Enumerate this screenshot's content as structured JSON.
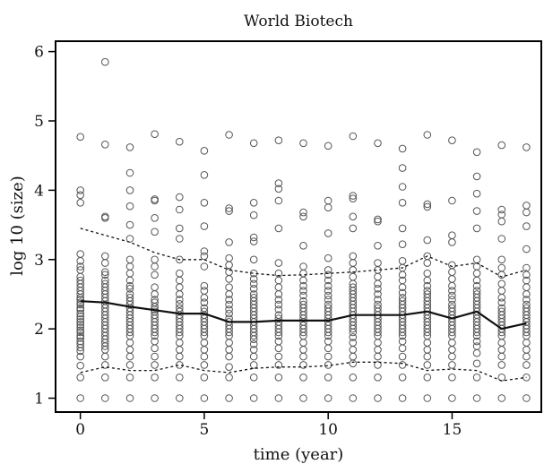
{
  "chart_data": {
    "type": "scatter",
    "title": "World Biotech",
    "xlabel": "time (year)",
    "ylabel": "log 10 (size)",
    "xlim": [
      -1,
      18.6
    ],
    "ylim": [
      0.8,
      6.15
    ],
    "xticks": [
      0,
      5,
      10,
      15
    ],
    "yticks": [
      1,
      2,
      3,
      4,
      5,
      6
    ],
    "grid": false,
    "legend": "none",
    "point_marker": "open-circle",
    "colors": {
      "points": "#555555",
      "lines": "#111111",
      "background": "#ffffff"
    },
    "points_by_year": [
      {
        "x": 0,
        "y": [
          4.77,
          4.0,
          3.93,
          3.82,
          3.08,
          2.98,
          2.9,
          2.85,
          2.75,
          2.7,
          2.65,
          2.6,
          2.55,
          2.5,
          2.45,
          2.42,
          2.38,
          2.35,
          2.3,
          2.27,
          2.22,
          2.18,
          2.14,
          2.1,
          2.06,
          2.02,
          1.98,
          1.95,
          1.9,
          1.87,
          1.82,
          1.78,
          1.73,
          1.68,
          1.6,
          1.47,
          1.3,
          1.0
        ]
      },
      {
        "x": 1,
        "y": [
          5.85,
          4.66,
          3.62,
          3.6,
          3.05,
          2.95,
          2.82,
          2.78,
          2.7,
          2.65,
          2.6,
          2.55,
          2.5,
          2.45,
          2.4,
          2.35,
          2.3,
          2.25,
          2.2,
          2.15,
          2.1,
          2.05,
          2.0,
          1.95,
          1.9,
          1.85,
          1.8,
          1.75,
          1.7,
          1.6,
          1.48,
          1.3,
          1.0
        ]
      },
      {
        "x": 2,
        "y": [
          4.62,
          4.25,
          4.0,
          3.77,
          3.5,
          3.3,
          3.0,
          2.9,
          2.8,
          2.7,
          2.62,
          2.58,
          2.5,
          2.45,
          2.4,
          2.35,
          2.3,
          2.25,
          2.2,
          2.15,
          2.1,
          2.05,
          2.0,
          1.95,
          1.9,
          1.8,
          1.7,
          1.6,
          1.48,
          1.3,
          1.0
        ]
      },
      {
        "x": 3,
        "y": [
          4.81,
          3.87,
          3.85,
          3.6,
          3.4,
          3.0,
          2.9,
          2.78,
          2.6,
          2.5,
          2.42,
          2.38,
          2.32,
          2.28,
          2.25,
          2.2,
          2.15,
          2.1,
          2.05,
          2.0,
          1.95,
          1.9,
          1.82,
          1.72,
          1.6,
          1.48,
          1.3,
          1.0
        ]
      },
      {
        "x": 4,
        "y": [
          4.7,
          3.9,
          3.72,
          3.45,
          3.3,
          3.0,
          2.8,
          2.7,
          2.6,
          2.5,
          2.42,
          2.36,
          2.3,
          2.25,
          2.2,
          2.15,
          2.1,
          2.05,
          2.0,
          1.95,
          1.9,
          1.8,
          1.7,
          1.6,
          1.48,
          1.3,
          1.0
        ]
      },
      {
        "x": 5,
        "y": [
          4.57,
          4.22,
          3.82,
          3.48,
          3.12,
          3.05,
          2.9,
          2.62,
          2.55,
          2.45,
          2.38,
          2.3,
          2.25,
          2.2,
          2.15,
          2.1,
          2.05,
          2.0,
          1.95,
          1.9,
          1.8,
          1.7,
          1.6,
          1.48,
          1.3,
          1.0
        ]
      },
      {
        "x": 6,
        "y": [
          4.8,
          3.74,
          3.7,
          3.25,
          3.02,
          2.92,
          2.82,
          2.72,
          2.6,
          2.5,
          2.42,
          2.35,
          2.28,
          2.22,
          2.15,
          2.1,
          2.05,
          2.0,
          1.95,
          1.9,
          1.8,
          1.7,
          1.6,
          1.45,
          1.3,
          1.0
        ]
      },
      {
        "x": 7,
        "y": [
          4.68,
          3.82,
          3.64,
          3.32,
          3.26,
          3.0,
          2.8,
          2.72,
          2.65,
          2.58,
          2.5,
          2.45,
          2.4,
          2.35,
          2.3,
          2.25,
          2.2,
          2.15,
          2.1,
          2.05,
          2.0,
          1.95,
          1.9,
          1.85,
          1.78,
          1.7,
          1.6,
          1.48,
          1.3,
          1.0
        ]
      },
      {
        "x": 8,
        "y": [
          4.72,
          4.1,
          4.02,
          3.85,
          3.45,
          2.95,
          2.8,
          2.7,
          2.6,
          2.5,
          2.42,
          2.35,
          2.28,
          2.2,
          2.15,
          2.1,
          2.05,
          2.0,
          1.95,
          1.9,
          1.82,
          1.72,
          1.6,
          1.48,
          1.3,
          1.0
        ]
      },
      {
        "x": 9,
        "y": [
          4.68,
          3.68,
          3.62,
          3.2,
          2.9,
          2.8,
          2.7,
          2.62,
          2.55,
          2.48,
          2.4,
          2.35,
          2.3,
          2.25,
          2.2,
          2.15,
          2.1,
          2.05,
          2.0,
          1.95,
          1.9,
          1.8,
          1.7,
          1.6,
          1.48,
          1.3,
          1.0
        ]
      },
      {
        "x": 10,
        "y": [
          4.64,
          3.85,
          3.75,
          3.38,
          3.02,
          2.85,
          2.78,
          2.7,
          2.62,
          2.55,
          2.48,
          2.42,
          2.35,
          2.3,
          2.25,
          2.2,
          2.15,
          2.1,
          2.05,
          2.0,
          1.95,
          1.9,
          1.82,
          1.72,
          1.6,
          1.48,
          1.3,
          1.0
        ]
      },
      {
        "x": 11,
        "y": [
          4.78,
          3.92,
          3.88,
          3.62,
          3.45,
          3.05,
          2.95,
          2.85,
          2.75,
          2.65,
          2.6,
          2.55,
          2.5,
          2.45,
          2.4,
          2.35,
          2.3,
          2.25,
          2.2,
          2.15,
          2.1,
          2.05,
          2.0,
          1.95,
          1.88,
          1.8,
          1.7,
          1.6,
          1.5,
          1.3,
          1.0
        ]
      },
      {
        "x": 12,
        "y": [
          4.68,
          3.58,
          3.55,
          3.2,
          2.95,
          2.85,
          2.75,
          2.65,
          2.58,
          2.5,
          2.42,
          2.35,
          2.3,
          2.25,
          2.2,
          2.15,
          2.1,
          2.05,
          2.0,
          1.95,
          1.9,
          1.8,
          1.7,
          1.6,
          1.48,
          1.3,
          1.0
        ]
      },
      {
        "x": 13,
        "y": [
          4.6,
          4.32,
          4.05,
          3.82,
          3.45,
          3.22,
          2.98,
          2.88,
          2.78,
          2.7,
          2.6,
          2.52,
          2.45,
          2.4,
          2.35,
          2.3,
          2.25,
          2.2,
          2.15,
          2.1,
          2.05,
          2.0,
          1.95,
          1.9,
          1.82,
          1.72,
          1.6,
          1.48,
          1.3,
          1.0
        ]
      },
      {
        "x": 14,
        "y": [
          4.8,
          3.8,
          3.76,
          3.28,
          3.05,
          2.95,
          2.8,
          2.7,
          2.62,
          2.55,
          2.5,
          2.45,
          2.4,
          2.35,
          2.3,
          2.25,
          2.2,
          2.15,
          2.1,
          2.05,
          2.0,
          1.95,
          1.9,
          1.8,
          1.7,
          1.6,
          1.48,
          1.3,
          1.0
        ]
      },
      {
        "x": 15,
        "y": [
          4.72,
          3.85,
          3.35,
          3.25,
          2.92,
          2.82,
          2.72,
          2.62,
          2.55,
          2.48,
          2.42,
          2.35,
          2.3,
          2.25,
          2.2,
          2.15,
          2.1,
          2.05,
          2.0,
          1.95,
          1.9,
          1.8,
          1.7,
          1.6,
          1.48,
          1.3,
          1.0
        ]
      },
      {
        "x": 16,
        "y": [
          4.55,
          4.2,
          3.95,
          3.7,
          3.45,
          3.0,
          2.9,
          2.8,
          2.7,
          2.62,
          2.55,
          2.5,
          2.45,
          2.4,
          2.35,
          2.3,
          2.25,
          2.2,
          2.15,
          2.1,
          2.05,
          2.0,
          1.95,
          1.9,
          1.82,
          1.75,
          1.65,
          1.5,
          1.3,
          1.0
        ]
      },
      {
        "x": 17,
        "y": [
          4.65,
          3.72,
          3.65,
          3.55,
          3.3,
          3.0,
          2.88,
          2.78,
          2.65,
          2.55,
          2.45,
          2.38,
          2.3,
          2.25,
          2.2,
          2.15,
          2.1,
          2.05,
          2.0,
          1.95,
          1.9,
          1.8,
          1.7,
          1.6,
          1.48,
          1.3,
          1.0
        ]
      },
      {
        "x": 18,
        "y": [
          4.62,
          3.78,
          3.68,
          3.48,
          3.15,
          2.88,
          2.78,
          2.7,
          2.6,
          2.5,
          2.42,
          2.35,
          2.3,
          2.25,
          2.2,
          2.15,
          2.1,
          2.05,
          2.0,
          1.95,
          1.9,
          1.8,
          1.7,
          1.6,
          1.48,
          1.3,
          1.0
        ]
      }
    ],
    "median_line": [
      {
        "x": 0,
        "y": 2.4
      },
      {
        "x": 1,
        "y": 2.38
      },
      {
        "x": 2,
        "y": 2.32
      },
      {
        "x": 3,
        "y": 2.27
      },
      {
        "x": 4,
        "y": 2.22
      },
      {
        "x": 5,
        "y": 2.22
      },
      {
        "x": 6,
        "y": 2.1
      },
      {
        "x": 7,
        "y": 2.1
      },
      {
        "x": 8,
        "y": 2.12
      },
      {
        "x": 9,
        "y": 2.12
      },
      {
        "x": 10,
        "y": 2.12
      },
      {
        "x": 11,
        "y": 2.2
      },
      {
        "x": 12,
        "y": 2.2
      },
      {
        "x": 13,
        "y": 2.2
      },
      {
        "x": 14,
        "y": 2.25
      },
      {
        "x": 15,
        "y": 2.15
      },
      {
        "x": 16,
        "y": 2.25
      },
      {
        "x": 17,
        "y": 2.0
      },
      {
        "x": 18,
        "y": 2.08
      }
    ],
    "upper_quantile_line": [
      {
        "x": 0,
        "y": 3.45
      },
      {
        "x": 1,
        "y": 3.35
      },
      {
        "x": 2,
        "y": 3.25
      },
      {
        "x": 3,
        "y": 3.1
      },
      {
        "x": 4,
        "y": 3.0
      },
      {
        "x": 5,
        "y": 3.0
      },
      {
        "x": 6,
        "y": 2.85
      },
      {
        "x": 7,
        "y": 2.8
      },
      {
        "x": 8,
        "y": 2.77
      },
      {
        "x": 9,
        "y": 2.78
      },
      {
        "x": 10,
        "y": 2.8
      },
      {
        "x": 11,
        "y": 2.82
      },
      {
        "x": 12,
        "y": 2.85
      },
      {
        "x": 13,
        "y": 2.88
      },
      {
        "x": 14,
        "y": 3.05
      },
      {
        "x": 15,
        "y": 2.9
      },
      {
        "x": 16,
        "y": 2.95
      },
      {
        "x": 17,
        "y": 2.75
      },
      {
        "x": 18,
        "y": 2.85
      }
    ],
    "lower_quantile_line": [
      {
        "x": 0,
        "y": 1.37
      },
      {
        "x": 1,
        "y": 1.45
      },
      {
        "x": 2,
        "y": 1.4
      },
      {
        "x": 3,
        "y": 1.4
      },
      {
        "x": 4,
        "y": 1.48
      },
      {
        "x": 5,
        "y": 1.4
      },
      {
        "x": 6,
        "y": 1.37
      },
      {
        "x": 7,
        "y": 1.43
      },
      {
        "x": 8,
        "y": 1.45
      },
      {
        "x": 9,
        "y": 1.45
      },
      {
        "x": 10,
        "y": 1.47
      },
      {
        "x": 11,
        "y": 1.52
      },
      {
        "x": 12,
        "y": 1.52
      },
      {
        "x": 13,
        "y": 1.5
      },
      {
        "x": 14,
        "y": 1.4
      },
      {
        "x": 15,
        "y": 1.42
      },
      {
        "x": 16,
        "y": 1.4
      },
      {
        "x": 17,
        "y": 1.25
      },
      {
        "x": 18,
        "y": 1.3
      }
    ]
  }
}
